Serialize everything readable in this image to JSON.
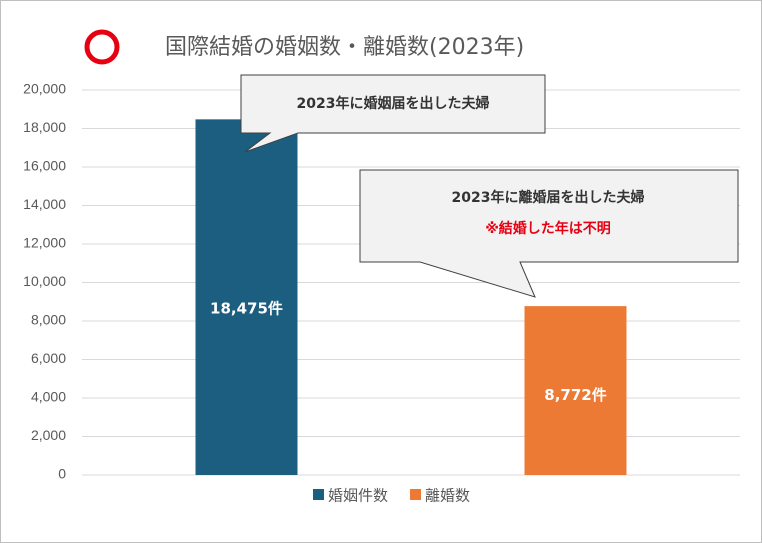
{
  "chart_data": {
    "type": "bar",
    "title": "国際結婚の婚姻数・離婚数(2023年)",
    "categories": [
      null
    ],
    "series": [
      {
        "name": "婚姻件数",
        "color": "#1b5e80",
        "values": [
          18475
        ],
        "value_labels": [
          "18,475件"
        ]
      },
      {
        "name": "離婚数",
        "color": "#ec7a35",
        "values": [
          8772
        ],
        "value_labels": [
          "8,772件"
        ]
      }
    ],
    "ylim": [
      0,
      20000
    ],
    "yticks": [
      0,
      {
        "value": 2000,
        "label": "2,000"
      },
      {
        "value": 4000,
        "label": "4,000"
      },
      {
        "value": 6000,
        "label": "6,000"
      },
      {
        "value": 8000,
        "label": "8,000"
      },
      {
        "value": 10000,
        "label": "10,000"
      },
      {
        "value": 12000,
        "label": "12,000"
      },
      {
        "value": 14000,
        "label": "14,000"
      },
      {
        "value": 16000,
        "label": "16,000"
      },
      {
        "value": 18000,
        "label": "18,000"
      },
      {
        "value": 20000,
        "label": "20,000"
      }
    ],
    "grid": true,
    "legend": "bottom",
    "annotations": [
      "2023年に婚姻届を出した夫婦",
      "2023年に離婚届を出した夫婦",
      "※結婚した年は不明"
    ]
  }
}
